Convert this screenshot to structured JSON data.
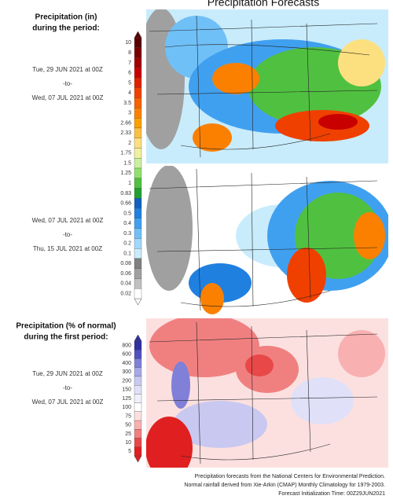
{
  "header": {
    "title": "Precipitation Forecasts"
  },
  "precip_legend": {
    "title": [
      "Precipitation (in)",
      "during the period:"
    ],
    "labels": [
      "10",
      "8",
      "7",
      "6",
      "5",
      "4",
      "3.5",
      "3",
      "2.66",
      "2.33",
      "2",
      "1.75",
      "1.5",
      "1.25",
      "1",
      "0.83",
      "0.66",
      "0.5",
      "0.4",
      "0.3",
      "0.2",
      "0.1",
      "0.08",
      "0.06",
      "0.04",
      "0.02"
    ],
    "colors": [
      "#5a0000",
      "#7a0000",
      "#a00000",
      "#c80000",
      "#e02000",
      "#f04000",
      "#f86000",
      "#fc8000",
      "#fca000",
      "#fcc040",
      "#fce080",
      "#f0f0a0",
      "#c8f0a0",
      "#90e070",
      "#50c040",
      "#20a030",
      "#1060c0",
      "#2080e0",
      "#40a0f0",
      "#70c0f8",
      "#a0d8fc",
      "#c8ecfc",
      "#808080",
      "#a0a0a0",
      "#c0c0c0",
      "#ffffff"
    ]
  },
  "period_1": [
    "Tue, 29 JUN 2021 at 00Z",
    "-to-",
    "Wed, 07 JUL 2021 at 00Z"
  ],
  "period_2": [
    "Wed, 07 JUL 2021 at 00Z",
    "-to-",
    "Thu, 15 JUL 2021 at 00Z"
  ],
  "percent_legend": {
    "title": [
      "Precipitation (% of normal)",
      "during the first period:"
    ],
    "labels": [
      "800",
      "600",
      "400",
      "300",
      "200",
      "150",
      "125",
      "100",
      "75",
      "50",
      "25",
      "10",
      "5"
    ],
    "colors": [
      "#3030a0",
      "#5050c0",
      "#8080d8",
      "#a8a8e8",
      "#c8c8f0",
      "#e0e0f8",
      "#f0f0fc",
      "#ffffff",
      "#fce0e0",
      "#f8b0b0",
      "#f08080",
      "#e84848",
      "#e02020"
    ]
  },
  "period_3": [
    "Tue, 29 JUN 2021 at 00Z",
    "-to-",
    "Wed, 07 JUL 2021 at 00Z"
  ],
  "footer": [
    "Precipitation forecasts from the National Centers for Environmental Prediction.",
    "Normal rainfall derived from Xie-Arkin (CMAP) Monthly Climatology for 1979-2003.",
    "Forecast Initialization Time: 00Z29JUN2021"
  ]
}
